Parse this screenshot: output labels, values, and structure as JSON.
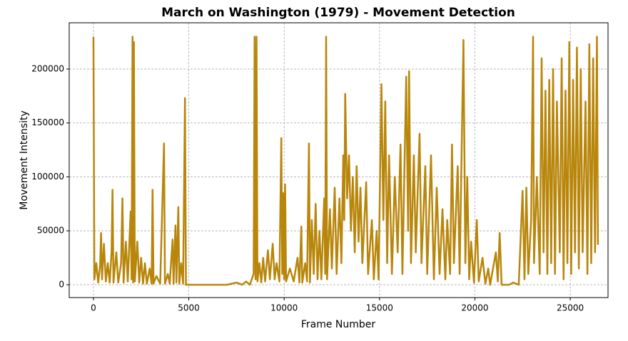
{
  "chart_data": {
    "type": "line",
    "title": "March on Washington (1979) - Movement Detection",
    "x_label": "Frame Number",
    "y_label": "Movement Intensity",
    "color": "#b8860b",
    "grid": true,
    "xlim": [
      -1270,
      26980
    ],
    "ylim": [
      -11900,
      242900
    ],
    "xticks": [
      0,
      5000,
      10000,
      15000,
      20000,
      25000
    ],
    "yticks": [
      0,
      50000,
      100000,
      150000,
      200000
    ],
    "x": [
      0,
      50,
      150,
      250,
      350,
      400,
      450,
      550,
      650,
      750,
      850,
      950,
      1000,
      1050,
      1200,
      1300,
      1450,
      1520,
      1580,
      1700,
      1800,
      1950,
      2000,
      2050,
      2080,
      2120,
      2170,
      2300,
      2400,
      2500,
      2600,
      2700,
      2800,
      2950,
      3050,
      3100,
      3150,
      3300,
      3500,
      3700,
      3750,
      3900,
      4000,
      4150,
      4200,
      4300,
      4350,
      4450,
      4500,
      4600,
      4700,
      4800,
      4850,
      5000,
      6000,
      7000,
      7500,
      7800,
      8000,
      8200,
      8400,
      8450,
      8500,
      8550,
      8600,
      8700,
      8800,
      8900,
      9000,
      9150,
      9250,
      9400,
      9500,
      9600,
      9750,
      9850,
      9900,
      9950,
      10000,
      10050,
      10100,
      10300,
      10500,
      10700,
      10800,
      10900,
      10950,
      11100,
      11200,
      11300,
      11350,
      11450,
      11550,
      11650,
      11750,
      11850,
      11950,
      12100,
      12150,
      12200,
      12250,
      12400,
      12500,
      12650,
      12750,
      12900,
      13000,
      13100,
      13150,
      13200,
      13300,
      13400,
      13500,
      13600,
      13700,
      13800,
      13900,
      14000,
      14100,
      14300,
      14400,
      14600,
      14700,
      14850,
      14950,
      15100,
      15200,
      15300,
      15400,
      15500,
      15650,
      15800,
      15950,
      16100,
      16200,
      16400,
      16500,
      16550,
      16650,
      16800,
      16900,
      17100,
      17200,
      17400,
      17500,
      17700,
      17850,
      18000,
      18150,
      18300,
      18450,
      18550,
      18700,
      18800,
      18900,
      19100,
      19200,
      19400,
      19500,
      19600,
      19700,
      19800,
      19950,
      20100,
      20200,
      20400,
      20550,
      20700,
      20800,
      21100,
      21200,
      21300,
      21400,
      21800,
      22000,
      22300,
      22500,
      22600,
      22700,
      22800,
      22950,
      23050,
      23100,
      23250,
      23400,
      23500,
      23600,
      23700,
      23800,
      23900,
      24000,
      24100,
      24200,
      24300,
      24450,
      24550,
      24650,
      24750,
      24850,
      24950,
      25050,
      25150,
      25250,
      25350,
      25450,
      25550,
      25650,
      25800,
      25900,
      26000,
      26100,
      26200,
      26300,
      26400,
      26450
    ],
    "values": [
      230000,
      5000,
      20000,
      2000,
      18000,
      48000,
      5000,
      38000,
      3000,
      20000,
      2000,
      30000,
      88000,
      2000,
      30000,
      2000,
      20000,
      80000,
      2000,
      40000,
      3000,
      68000,
      5000,
      230000,
      2000,
      225000,
      3000,
      40000,
      2000,
      25000,
      1000,
      20000,
      1000,
      15000,
      1000,
      88000,
      1000,
      8000,
      1000,
      131000,
      1000,
      10000,
      1000,
      42000,
      1000,
      55000,
      2000,
      72000,
      1000,
      20000,
      1000,
      173000,
      0,
      0,
      0,
      0,
      2000,
      0,
      3000,
      0,
      10000,
      230000,
      5000,
      230000,
      3000,
      20000,
      2000,
      25000,
      3000,
      32000,
      5000,
      38000,
      5000,
      20000,
      3000,
      136000,
      10000,
      85000,
      5000,
      93000,
      3000,
      15000,
      3000,
      25000,
      2000,
      54000,
      2000,
      20000,
      3000,
      131000,
      2000,
      60000,
      10000,
      75000,
      5000,
      50000,
      5000,
      80000,
      10000,
      230000,
      5000,
      70000,
      15000,
      90000,
      10000,
      80000,
      20000,
      120000,
      60000,
      177000,
      80000,
      120000,
      50000,
      100000,
      30000,
      110000,
      40000,
      90000,
      20000,
      95000,
      10000,
      60000,
      5000,
      50000,
      5000,
      186000,
      60000,
      170000,
      20000,
      120000,
      10000,
      100000,
      30000,
      130000,
      10000,
      193000,
      50000,
      198000,
      20000,
      120000,
      30000,
      140000,
      20000,
      110000,
      10000,
      120000,
      5000,
      90000,
      10000,
      70000,
      5000,
      60000,
      10000,
      130000,
      20000,
      110000,
      10000,
      227000,
      20000,
      100000,
      5000,
      40000,
      2000,
      60000,
      3000,
      25000,
      1000,
      15000,
      0,
      30000,
      3000,
      48000,
      0,
      0,
      2000,
      0,
      87000,
      5000,
      90000,
      10000,
      60000,
      230000,
      20000,
      100000,
      10000,
      210000,
      30000,
      180000,
      10000,
      190000,
      20000,
      200000,
      10000,
      170000,
      30000,
      210000,
      5000,
      180000,
      20000,
      225000,
      10000,
      190000,
      30000,
      220000,
      15000,
      200000,
      30000,
      170000,
      10000,
      223000,
      20000,
      210000,
      30000,
      230000,
      37000
    ]
  }
}
